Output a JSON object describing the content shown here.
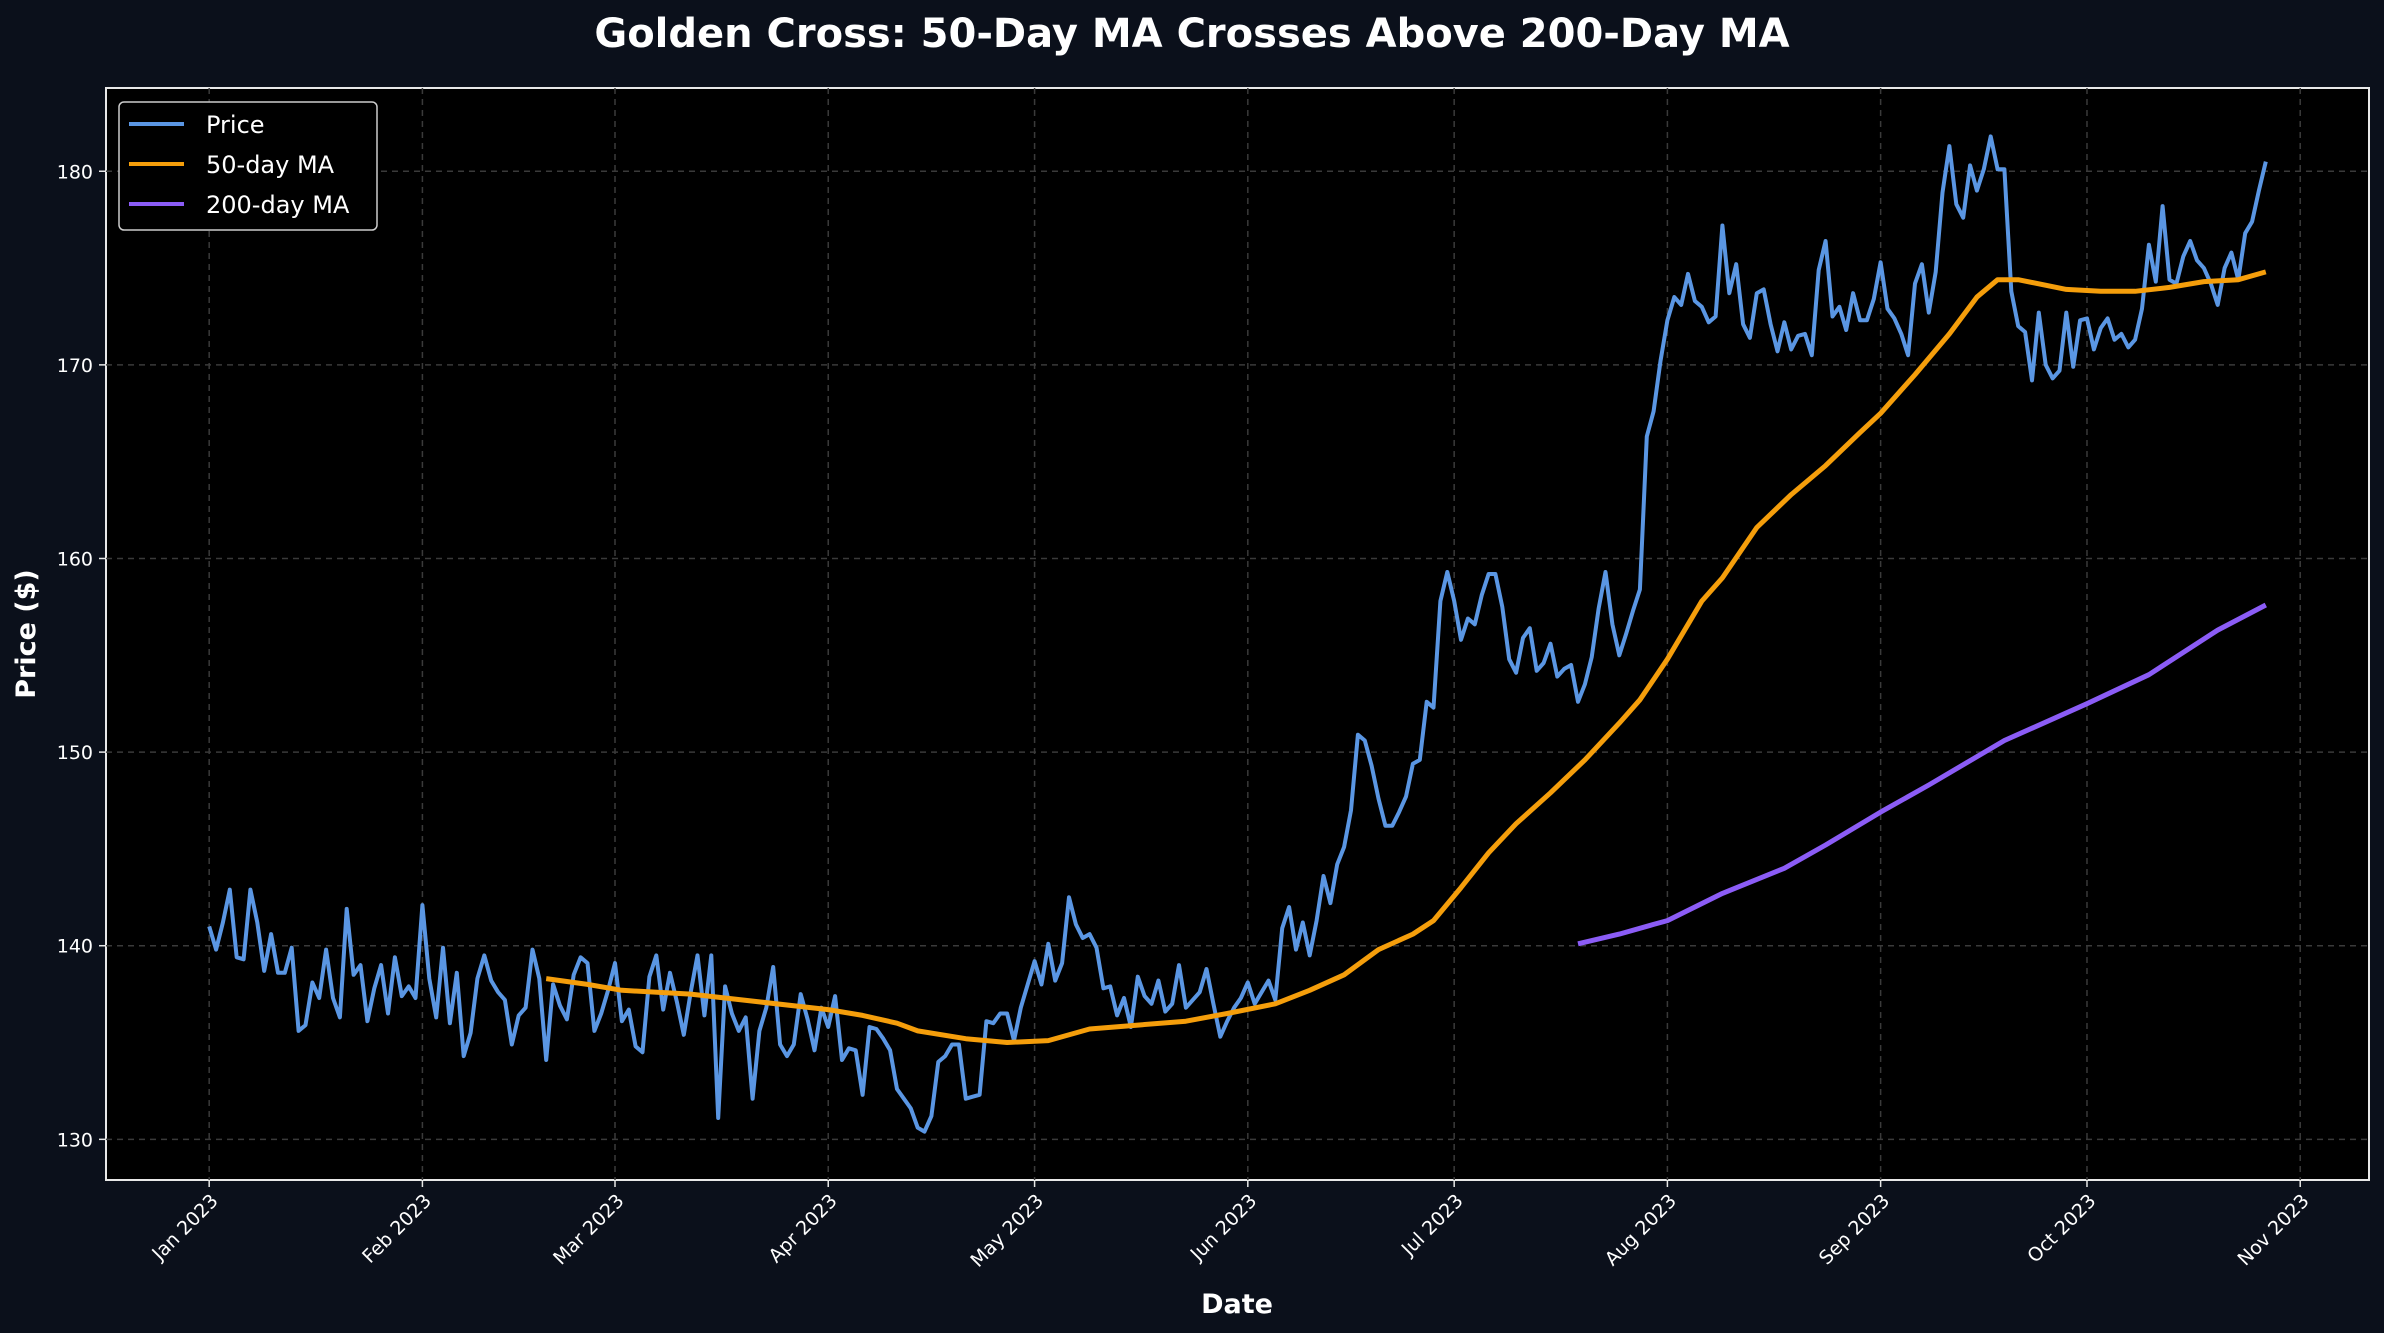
{
  "chart_data": {
    "type": "line",
    "title": "Golden Cross: 50-Day MA Crosses Above 200-Day MA",
    "xlabel": "Date",
    "ylabel": "Price ($)",
    "xlim": [
      "2022-12-17",
      "2023-11-11"
    ],
    "ylim": [
      127.9,
      184.3
    ],
    "x_ticks": [
      {
        "date": "2023-01-01",
        "label": "Jan 2023"
      },
      {
        "date": "2023-02-01",
        "label": "Feb 2023"
      },
      {
        "date": "2023-03-01",
        "label": "Mar 2023"
      },
      {
        "date": "2023-04-01",
        "label": "Apr 2023"
      },
      {
        "date": "2023-05-01",
        "label": "May 2023"
      },
      {
        "date": "2023-06-01",
        "label": "Jun 2023"
      },
      {
        "date": "2023-07-01",
        "label": "Jul 2023"
      },
      {
        "date": "2023-08-01",
        "label": "Aug 2023"
      },
      {
        "date": "2023-09-01",
        "label": "Sep 2023"
      },
      {
        "date": "2023-10-01",
        "label": "Oct 2023"
      },
      {
        "date": "2023-11-01",
        "label": "Nov 2023"
      }
    ],
    "y_ticks": [
      130,
      140,
      150,
      160,
      170,
      180
    ],
    "grid": true,
    "legend_position": "top-left",
    "series": [
      {
        "name": "Price",
        "color": "#5a96e3",
        "daily_by_month": {
          "2023-01": [
            141,
            139.8,
            141.2,
            142.9,
            139.4,
            139.3,
            142.9,
            141.2,
            138.7,
            140.6,
            138.6,
            138.6,
            139.9,
            135.6,
            135.9,
            138.1,
            137.3,
            139.8,
            137.3,
            136.3,
            141.9,
            138.5,
            139,
            136.1,
            137.8,
            139,
            136.5,
            139.4,
            137.4,
            137.9,
            137.3
          ],
          "2023-02": [
            142.1,
            138.3,
            136.3,
            139.9,
            136,
            138.6,
            134.3,
            135.5,
            138.3,
            139.5,
            138.2,
            137.6,
            137.2,
            134.9,
            136.4,
            136.8,
            139.8,
            138.3,
            134.1,
            138,
            136.9,
            136.2,
            138.5,
            139.4,
            139.1,
            135.6,
            136.5,
            137.7
          ],
          "2023-03": [
            139.1,
            136.1,
            136.7,
            134.8,
            134.5,
            138.4,
            139.5,
            136.7,
            138.6,
            137.1,
            135.4,
            137.6,
            139.5,
            136.4,
            139.5,
            131.1,
            137.9,
            136.5,
            135.6,
            136.3,
            132.1,
            135.6,
            136.8,
            138.9,
            134.9,
            134.3,
            134.9,
            137.5,
            136.2,
            134.6,
            136.8
          ],
          "2023-04": [
            135.8,
            137.4,
            134.1,
            134.7,
            134.6,
            132.3,
            135.8,
            135.7,
            135.2,
            134.6,
            132.6,
            132.1,
            131.6,
            130.6,
            130.4,
            131.2,
            134,
            134.3,
            134.9,
            134.9,
            132.1,
            132.2,
            132.3,
            136.1,
            136,
            136.5,
            136.5,
            135.1,
            136.8,
            138
          ],
          "2023-05": [
            139.2,
            138,
            140.1,
            138.2,
            139.1,
            142.5,
            141.1,
            140.4,
            140.6,
            139.9,
            137.8,
            137.9,
            136.4,
            137.3,
            135.8,
            138.4,
            137.4,
            137,
            138.2,
            136.6,
            137,
            139,
            136.8,
            137.2,
            137.6,
            138.8,
            137,
            135.3,
            136.1,
            136.8,
            137.3
          ],
          "2023-06": [
            138.1,
            137,
            137.6,
            138.2,
            137.2,
            140.9,
            142,
            139.8,
            141.2,
            139.5,
            141.3,
            143.6,
            142.2,
            144.2,
            145.1,
            147,
            150.9,
            150.6,
            149.3,
            147.6,
            146.2,
            146.2,
            146.9,
            147.7,
            149.4,
            149.6,
            152.6,
            152.3,
            157.8,
            159.3
          ],
          "2023-07": [
            157.8,
            155.8,
            156.9,
            156.6,
            158.1,
            159.2,
            159.2,
            157.5,
            154.8,
            154.1,
            155.9,
            156.4,
            154.2,
            154.6,
            155.6,
            153.9,
            154.3,
            154.5,
            152.6,
            153.5,
            154.9,
            157.4,
            159.3,
            156.6,
            155,
            156.1,
            157.3,
            158.4,
            166.3,
            167.6,
            170.2
          ],
          "2023-08": [
            172.3,
            173.5,
            173.1,
            174.7,
            173.3,
            173,
            172.2,
            172.5,
            177.2,
            173.7,
            175.2,
            172.1,
            171.4,
            173.7,
            173.9,
            172.1,
            170.7,
            172.2,
            170.8,
            171.5,
            171.6,
            170.5,
            174.9,
            176.4,
            172.5,
            173,
            171.8,
            173.7,
            172.3,
            172.3,
            173.4
          ],
          "2023-09": [
            175.3,
            172.9,
            172.4,
            171.6,
            170.5,
            174.2,
            175.2,
            172.7,
            174.8,
            178.9,
            181.3,
            178.3,
            177.6,
            180.3,
            179,
            180.1,
            181.8,
            180.1,
            180.1,
            173.8,
            172,
            171.7,
            169.2,
            172.7,
            170,
            169.3,
            169.7,
            172.7,
            169.9,
            172.3
          ],
          "2023-10": [
            172.4,
            170.8,
            171.9,
            172.4,
            171.3,
            171.6,
            170.9,
            171.3,
            172.9,
            176.2,
            174.3,
            178.2,
            174.4,
            174.2,
            175.6,
            176.4,
            175.4,
            175,
            174.2,
            173.1,
            175,
            175.8,
            174.4,
            176.8,
            177.4,
            179,
            180.5
          ]
        }
      },
      {
        "name": "50-day MA",
        "color": "#f59e0b",
        "points": [
          [
            "2023-02-19",
            138.3
          ],
          [
            "2023-02-25",
            138.0
          ],
          [
            "2023-03-02",
            137.7
          ],
          [
            "2023-03-12",
            137.5
          ],
          [
            "2023-03-22",
            137.1
          ],
          [
            "2023-04-01",
            136.7
          ],
          [
            "2023-04-06",
            136.4
          ],
          [
            "2023-04-11",
            136.0
          ],
          [
            "2023-04-14",
            135.6
          ],
          [
            "2023-04-21",
            135.2
          ],
          [
            "2023-04-27",
            135.0
          ],
          [
            "2023-05-03",
            135.1
          ],
          [
            "2023-05-09",
            135.7
          ],
          [
            "2023-05-16",
            135.9
          ],
          [
            "2023-05-23",
            136.1
          ],
          [
            "2023-05-29",
            136.5
          ],
          [
            "2023-06-05",
            137.0
          ],
          [
            "2023-06-10",
            137.7
          ],
          [
            "2023-06-15",
            138.5
          ],
          [
            "2023-06-20",
            139.8
          ],
          [
            "2023-06-25",
            140.6
          ],
          [
            "2023-06-28",
            141.3
          ],
          [
            "2023-07-02",
            143.0
          ],
          [
            "2023-07-06",
            144.8
          ],
          [
            "2023-07-10",
            146.3
          ],
          [
            "2023-07-15",
            147.9
          ],
          [
            "2023-07-20",
            149.6
          ],
          [
            "2023-07-25",
            151.5
          ],
          [
            "2023-07-28",
            152.7
          ],
          [
            "2023-08-01",
            154.8
          ],
          [
            "2023-08-06",
            157.8
          ],
          [
            "2023-08-09",
            159.0
          ],
          [
            "2023-08-14",
            161.6
          ],
          [
            "2023-08-19",
            163.3
          ],
          [
            "2023-08-24",
            164.8
          ],
          [
            "2023-08-29",
            166.5
          ],
          [
            "2023-09-01",
            167.5
          ],
          [
            "2023-09-06",
            169.5
          ],
          [
            "2023-09-11",
            171.6
          ],
          [
            "2023-09-15",
            173.5
          ],
          [
            "2023-09-18",
            174.4
          ],
          [
            "2023-09-21",
            174.4
          ],
          [
            "2023-09-28",
            173.9
          ],
          [
            "2023-10-03",
            173.8
          ],
          [
            "2023-10-08",
            173.8
          ],
          [
            "2023-10-13",
            174.0
          ],
          [
            "2023-10-18",
            174.3
          ],
          [
            "2023-10-23",
            174.4
          ],
          [
            "2023-10-27",
            174.8
          ]
        ]
      },
      {
        "name": "200-day MA",
        "color": "#8b5cf6",
        "points": [
          [
            "2023-07-19",
            140.1
          ],
          [
            "2023-07-25",
            140.6
          ],
          [
            "2023-07-30",
            141.1
          ],
          [
            "2023-08-01",
            141.3
          ],
          [
            "2023-08-09",
            142.7
          ],
          [
            "2023-08-18",
            144.0
          ],
          [
            "2023-08-24",
            145.2
          ],
          [
            "2023-09-01",
            146.9
          ],
          [
            "2023-09-08",
            148.3
          ],
          [
            "2023-09-19",
            150.6
          ],
          [
            "2023-10-01",
            152.5
          ],
          [
            "2023-10-10",
            154.0
          ],
          [
            "2023-10-20",
            156.3
          ],
          [
            "2023-10-27",
            157.6
          ]
        ]
      }
    ]
  }
}
